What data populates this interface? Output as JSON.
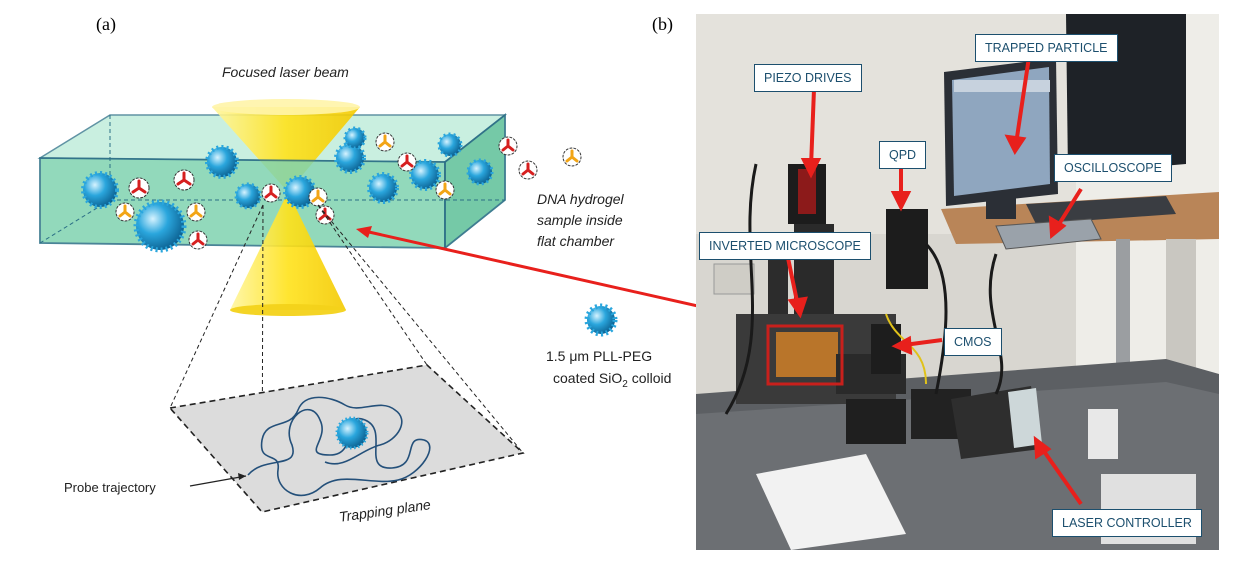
{
  "panel_a": {
    "label": "(a)",
    "laser_label": "Focused laser beam",
    "sample_label_1": "DNA hydrogel",
    "sample_label_2": "sample inside",
    "sample_label_3": "flat chamber",
    "colloid_label_1": "1.5 μm PLL-PEG",
    "colloid_label_2a": "coated SiO",
    "colloid_label_2sub": "2",
    "colloid_label_2b": " colloid",
    "trajectory_label": "Probe trajectory",
    "plane_label": "Trapping plane"
  },
  "panel_b": {
    "label": "(b)",
    "callouts": {
      "piezo": "PIEZO DRIVES",
      "trapped": "TRAPPED PARTICLE",
      "qpd": "QPD",
      "oscilloscope": "OSCILLOSCOPE",
      "microscope": "INVERTED MICROSCOPE",
      "cmos": "CMOS",
      "laser_controller": "LASER CONTROLLER"
    }
  },
  "colors": {
    "arrow": "#e8201c",
    "chamber": "#7fd3b0",
    "beam": "#ffe21a",
    "colloid": "#2aa6dd",
    "callout_border": "#1c4f6e"
  }
}
